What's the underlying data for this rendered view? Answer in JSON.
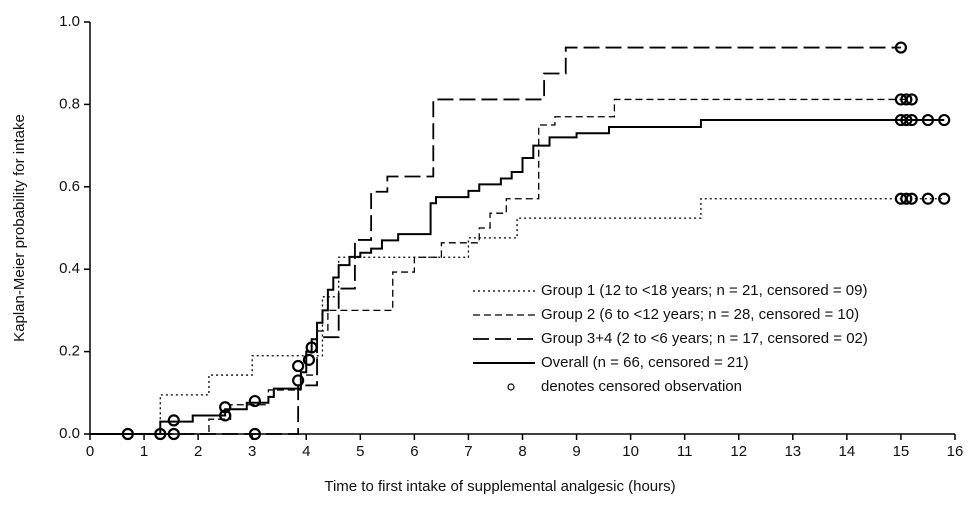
{
  "chart_data": {
    "type": "step",
    "x_label": "Time to first intake of supplemental analgesic (hours)",
    "y_label": "Kaplan-Meier probability for intake",
    "xlim": [
      0,
      16
    ],
    "xticks": [
      0,
      1,
      2,
      3,
      4,
      5,
      6,
      7,
      8,
      9,
      10,
      11,
      12,
      13,
      14,
      15,
      16
    ],
    "ylim": [
      0,
      1
    ],
    "yticks": [
      {
        "value": 0,
        "label": "0.0"
      },
      0.2,
      0.4,
      0.6,
      0.8,
      {
        "value": 1,
        "label": "1.0"
      }
    ],
    "censored_label": "denotes censored observation",
    "series": [
      {
        "name": "Group 1 (12 to <18 years; n = 21, censored = 09)",
        "color": "#000000",
        "dash": "2,3",
        "width": 1.3,
        "x": [
          0,
          1.3,
          2.2,
          3.0,
          4.3,
          4.6,
          7.0,
          7.9,
          11.3,
          15.8
        ],
        "values": [
          0,
          0.095,
          0.143,
          0.19,
          0.333,
          0.429,
          0.476,
          0.524,
          0.571,
          0.571
        ],
        "censored_x": [
          15.0,
          15.1,
          15.2,
          15.5,
          15.8
        ],
        "censored_values": [
          0.571,
          0.571,
          0.571,
          0.571,
          0.571
        ]
      },
      {
        "name": "Group 2 (6 to <12 years; n = 28, censored = 10)",
        "color": "#000000",
        "dash": "7,4",
        "width": 1.3,
        "x": [
          0,
          2.2,
          2.6,
          3.3,
          3.9,
          4.2,
          4.4,
          5.6,
          6.0,
          6.5,
          7.2,
          7.4,
          7.7,
          8.3,
          8.6,
          9.7,
          15.2
        ],
        "values": [
          0,
          0.036,
          0.071,
          0.107,
          0.143,
          0.25,
          0.3,
          0.393,
          0.429,
          0.464,
          0.5,
          0.536,
          0.571,
          0.75,
          0.77,
          0.812,
          0.812
        ],
        "censored_x": [
          15.0,
          15.1,
          15.2
        ],
        "censored_values": [
          0.812,
          0.812,
          0.812
        ]
      },
      {
        "name": "Group 3+4 (2 to <6 years; n = 17, censored = 02)",
        "color": "#000000",
        "dash": "16,6",
        "width": 1.8,
        "x": [
          0,
          3.85,
          4.2,
          4.6,
          4.9,
          5.2,
          5.5,
          6.35,
          8.4,
          8.8,
          15.0
        ],
        "values": [
          0,
          0.118,
          0.235,
          0.353,
          0.471,
          0.588,
          0.625,
          0.812,
          0.875,
          0.938,
          0.938
        ],
        "censored_x": [
          15.0
        ],
        "censored_values": [
          0.938
        ]
      },
      {
        "name": "Overall (n = 66, censored = 21)",
        "color": "#000000",
        "dash": "none",
        "width": 2,
        "x": [
          0,
          1.3,
          1.9,
          2.5,
          2.9,
          3.3,
          3.4,
          3.9,
          4.0,
          4.1,
          4.2,
          4.3,
          4.4,
          4.5,
          4.6,
          4.8,
          5.0,
          5.2,
          5.4,
          5.7,
          6.3,
          6.4,
          7.0,
          7.2,
          7.6,
          7.8,
          8.0,
          8.2,
          8.5,
          9.0,
          9.6,
          11.3,
          15.8
        ],
        "values": [
          0,
          0.03,
          0.045,
          0.06,
          0.076,
          0.09,
          0.11,
          0.15,
          0.2,
          0.23,
          0.27,
          0.3,
          0.35,
          0.38,
          0.41,
          0.43,
          0.44,
          0.45,
          0.47,
          0.485,
          0.56,
          0.575,
          0.59,
          0.606,
          0.62,
          0.636,
          0.67,
          0.7,
          0.72,
          0.73,
          0.745,
          0.762,
          0.762
        ],
        "censored_x": [
          0.7,
          1.3,
          1.55,
          1.55,
          2.5,
          2.5,
          3.05,
          3.05,
          3.85,
          3.85,
          4.05,
          4.1,
          15.0,
          15.1,
          15.2,
          15.5,
          15.8
        ],
        "censored_values": [
          0,
          0,
          0,
          0.033,
          0.045,
          0.065,
          0,
          0.08,
          0.13,
          0.165,
          0.18,
          0.21,
          0.762,
          0.762,
          0.762,
          0.762,
          0.762
        ]
      }
    ]
  }
}
